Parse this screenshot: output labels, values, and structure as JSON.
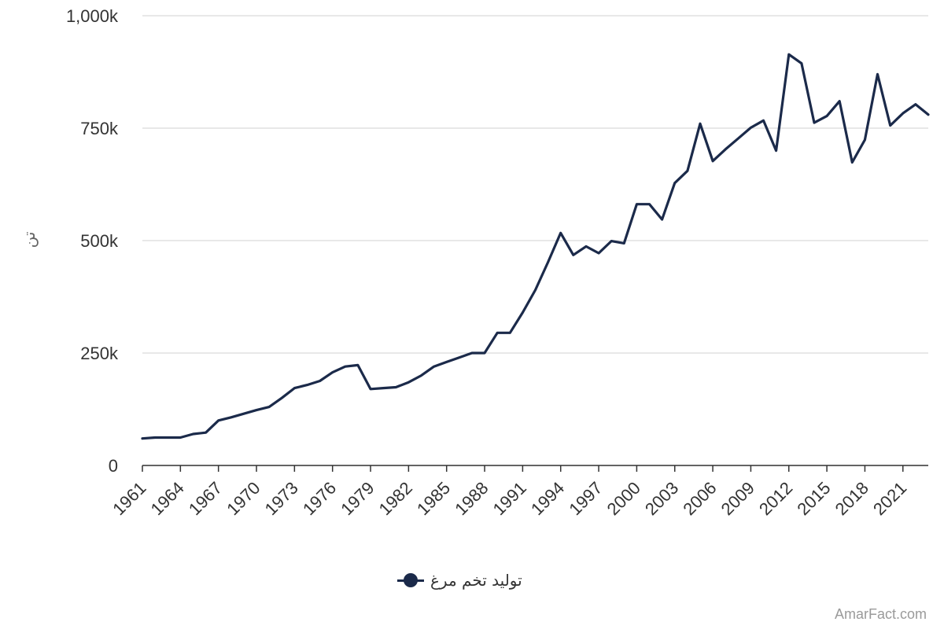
{
  "chart_data": {
    "type": "line",
    "ylabel": "تن",
    "ylim": [
      0,
      1000000
    ],
    "y_ticks": [
      {
        "value": 0,
        "label": "0"
      },
      {
        "value": 250000,
        "label": "250k"
      },
      {
        "value": 500000,
        "label": "500k"
      },
      {
        "value": 750000,
        "label": "750k"
      },
      {
        "value": 1000000,
        "label": "1,000k"
      }
    ],
    "x_tick_labels": [
      "1961",
      "1964",
      "1967",
      "1970",
      "1973",
      "1976",
      "1979",
      "1982",
      "1985",
      "1988",
      "1991",
      "1994",
      "1997",
      "2000",
      "2003",
      "2006",
      "2009",
      "2012",
      "2015",
      "2018",
      "2021"
    ],
    "grid": true,
    "legend_position": "bottom",
    "series": [
      {
        "name": "تولید تخم مرغ",
        "color": "#1b2a4a",
        "x": [
          1961,
          1962,
          1963,
          1964,
          1965,
          1966,
          1967,
          1968,
          1969,
          1970,
          1971,
          1972,
          1973,
          1974,
          1975,
          1976,
          1977,
          1978,
          1979,
          1980,
          1981,
          1982,
          1983,
          1984,
          1985,
          1986,
          1987,
          1988,
          1989,
          1990,
          1991,
          1992,
          1993,
          1994,
          1995,
          1996,
          1997,
          1998,
          1999,
          2000,
          2001,
          2002,
          2003,
          2004,
          2005,
          2006,
          2007,
          2008,
          2009,
          2010,
          2011,
          2012,
          2013,
          2014,
          2015,
          2016,
          2017,
          2018,
          2019,
          2020,
          2021,
          2022,
          2023
        ],
        "values": [
          60000,
          62000,
          62000,
          62000,
          70000,
          73000,
          100000,
          107000,
          115000,
          123000,
          130000,
          150000,
          172000,
          179000,
          188000,
          207000,
          220000,
          223000,
          170000,
          172000,
          174000,
          185000,
          200000,
          220000,
          230000,
          240000,
          250000,
          250000,
          295000,
          295000,
          340000,
          390000,
          452000,
          517000,
          468000,
          487000,
          472000,
          499000,
          494000,
          581000,
          581000,
          547000,
          628000,
          655000,
          760000,
          677000,
          703000,
          727000,
          751000,
          767000,
          700000,
          914000,
          894000,
          762000,
          777000,
          810000,
          674000,
          724000,
          870000,
          756000,
          783000,
          803000,
          780000
        ]
      }
    ]
  },
  "legend": {
    "label": "تولید تخم مرغ"
  },
  "watermark": "AmarFact.com"
}
